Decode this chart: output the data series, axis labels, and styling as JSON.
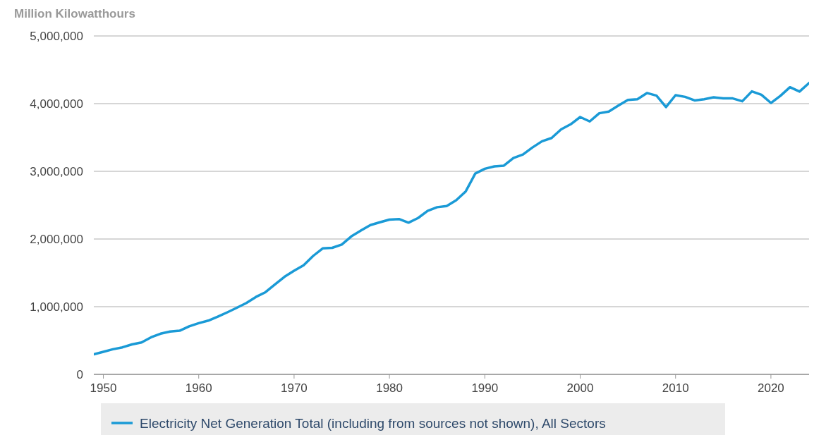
{
  "chart_data": {
    "type": "line",
    "ylabel": "Million Kilowatthours",
    "x": [
      1949,
      1950,
      1951,
      1952,
      1953,
      1954,
      1955,
      1956,
      1957,
      1958,
      1959,
      1960,
      1961,
      1962,
      1963,
      1964,
      1965,
      1966,
      1967,
      1968,
      1969,
      1970,
      1971,
      1972,
      1973,
      1974,
      1975,
      1976,
      1977,
      1978,
      1979,
      1980,
      1981,
      1982,
      1983,
      1984,
      1985,
      1986,
      1987,
      1988,
      1989,
      1990,
      1991,
      1992,
      1993,
      1994,
      1995,
      1996,
      1997,
      1998,
      1999,
      2000,
      2001,
      2002,
      2003,
      2004,
      2005,
      2006,
      2007,
      2008,
      2009,
      2010,
      2011,
      2012,
      2013,
      2014,
      2015,
      2016,
      2017,
      2018,
      2019,
      2020,
      2021,
      2022,
      2023,
      2024
    ],
    "series": [
      {
        "name": "Electricity Net Generation Total (including from sources not shown), All Sectors",
        "color": "#1a9ad6",
        "values": [
          296000,
          334000,
          371000,
          399000,
          443000,
          472000,
          547000,
          601000,
          632000,
          645000,
          710000,
          756000,
          794000,
          852000,
          917000,
          984000,
          1055000,
          1144000,
          1214000,
          1329000,
          1442000,
          1532000,
          1613000,
          1750000,
          1861000,
          1870000,
          1918000,
          2038000,
          2124000,
          2206000,
          2247000,
          2286000,
          2295000,
          2241000,
          2310000,
          2416000,
          2470000,
          2487000,
          2572000,
          2704000,
          2967000,
          3038000,
          3073000,
          3084000,
          3197000,
          3248000,
          3353000,
          3444000,
          3492000,
          3620000,
          3695000,
          3802000,
          3737000,
          3858000,
          3883000,
          3971000,
          4055000,
          4065000,
          4157000,
          4119000,
          3950000,
          4125000,
          4100000,
          4048000,
          4066000,
          4094000,
          4078000,
          4077000,
          4035000,
          4181000,
          4131000,
          4010000,
          4116000,
          4243000,
          4178000,
          4305000
        ]
      }
    ],
    "xlim": [
      1949,
      2024
    ],
    "xticks": [
      1950,
      1960,
      1970,
      1980,
      1990,
      2000,
      2010,
      2020
    ],
    "ylim": [
      0,
      5000000
    ],
    "yticks": [
      {
        "value": 0,
        "label": "0"
      },
      {
        "value": 1000000,
        "label": "1,000,000"
      },
      {
        "value": 2000000,
        "label": "2,000,000"
      },
      {
        "value": 3000000,
        "label": "3,000,000"
      },
      {
        "value": 4000000,
        "label": "4,000,000"
      },
      {
        "value": 5000000,
        "label": "5,000,000"
      }
    ],
    "grid": "y",
    "legend": "bottom"
  }
}
